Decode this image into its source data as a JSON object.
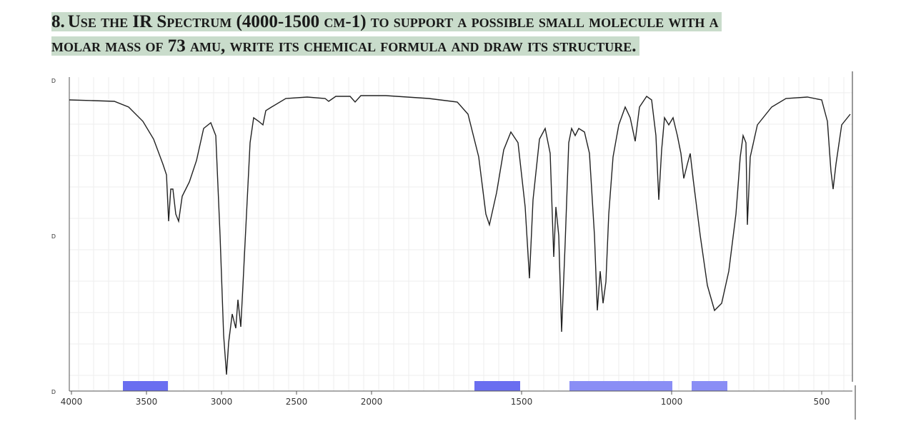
{
  "question": {
    "number": "8.",
    "lines": [
      "Use the IR Spectrum (4000-1500 cm-1) to support a possible small molecule with a",
      "molar mass of 73 amu, write its chemical formula and draw its structure."
    ]
  },
  "figure": {
    "xticks": [
      4000,
      3500,
      3000,
      2500,
      2000,
      1500,
      1000,
      500
    ],
    "y_labels": [
      "D",
      "D",
      "D"
    ]
  }
}
